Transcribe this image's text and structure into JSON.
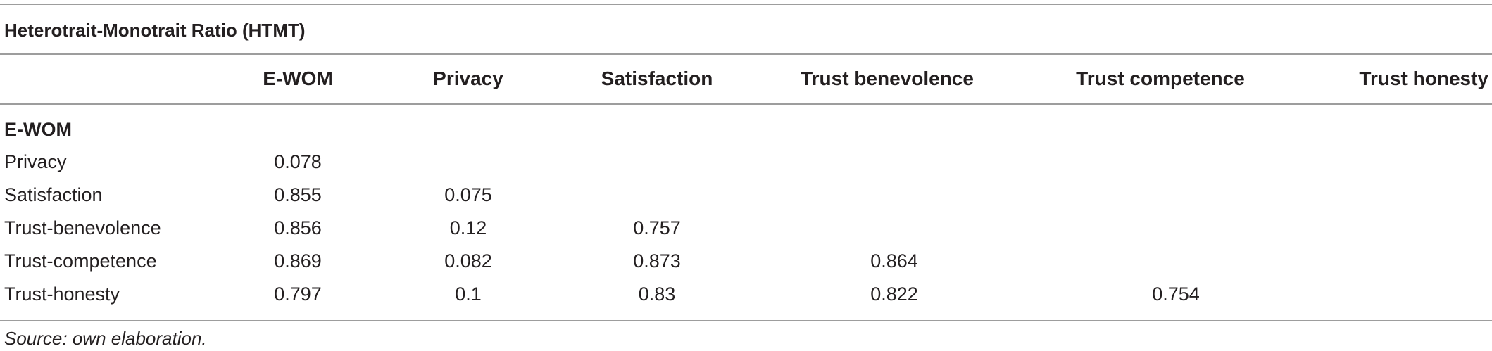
{
  "table": {
    "title": "Heterotrait-Monotrait Ratio (HTMT)",
    "columns": [
      "E-WOM",
      "Privacy",
      "Satisfaction",
      "Trust benevolence",
      "Trust competence",
      "Trust honesty"
    ],
    "rows": [
      {
        "label": "E-WOM",
        "values": []
      },
      {
        "label": "Privacy",
        "values": [
          "0.078"
        ]
      },
      {
        "label": "Satisfaction",
        "values": [
          "0.855",
          "0.075"
        ]
      },
      {
        "label": "Trust-benevolence",
        "values": [
          "0.856",
          "0.12",
          "0.757"
        ]
      },
      {
        "label": "Trust-competence",
        "values": [
          "0.869",
          "0.082",
          "0.873",
          "0.864"
        ]
      },
      {
        "label": "Trust-honesty",
        "values": [
          "0.797",
          "0.1",
          "0.83",
          "0.822",
          "0.754"
        ]
      }
    ],
    "source": "Source: own elaboration."
  }
}
